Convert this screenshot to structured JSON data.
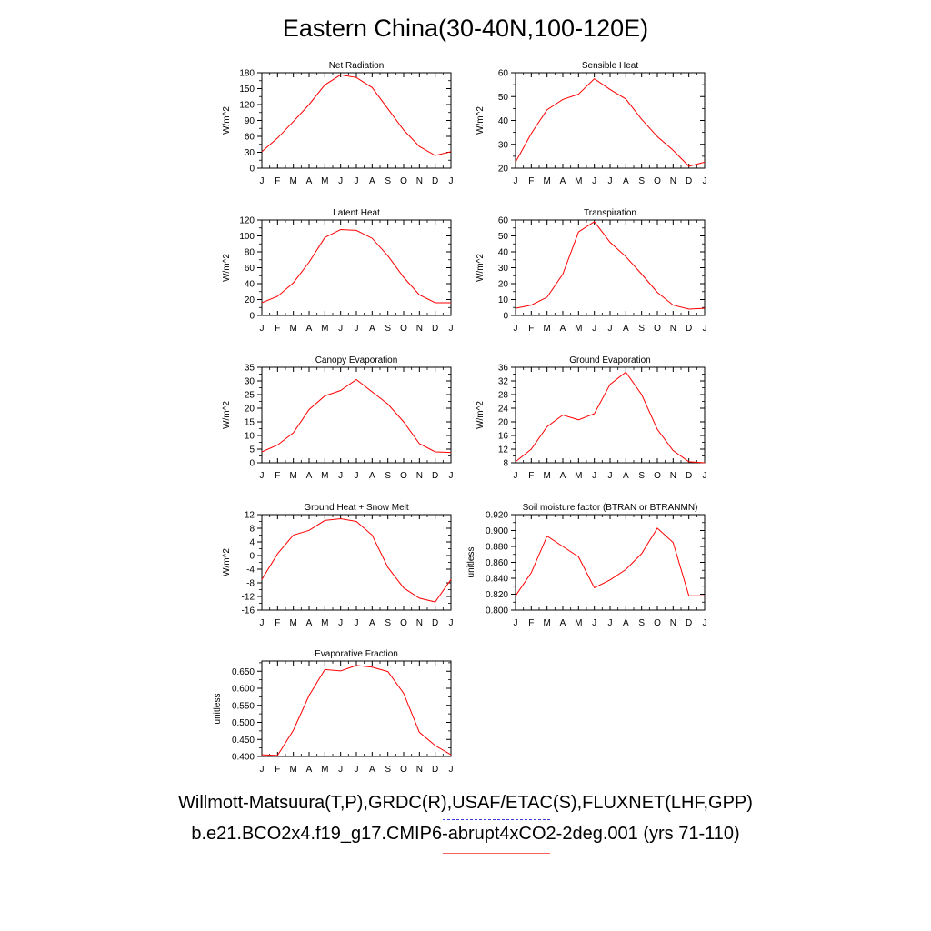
{
  "page": {
    "title": "Eastern China(30-40N,100-120E)"
  },
  "legend": {
    "observations_label": "Willmott-Matsuura(T,P),GRDC(R),USAF/ETAC(S),FLUXNET(LHF,GPP)",
    "model_label": "b.e21.BCO2x4.f19_g17.CMIP6-abrupt4xCO2-2deg.001 (yrs 71-110)",
    "observations_line_color": "#3b3bd9",
    "model_line_color": "#ff6060"
  },
  "chart_data": [
    {
      "type": "line",
      "title": "Net Radiation",
      "ylabel": "W/m^2",
      "categories": [
        "J",
        "F",
        "M",
        "A",
        "M",
        "J",
        "J",
        "A",
        "S",
        "O",
        "N",
        "D",
        "J"
      ],
      "ylim": [
        0,
        180
      ],
      "yticks": [
        "0",
        "30",
        "60",
        "90",
        "120",
        "150",
        "180"
      ],
      "values": [
        31,
        57,
        88,
        120,
        157,
        176,
        171,
        152,
        112,
        72,
        41,
        24,
        31
      ],
      "line_color": "#ff0000",
      "grid": false
    },
    {
      "type": "line",
      "title": "Sensible Heat",
      "ylabel": "W/m^2",
      "categories": [
        "J",
        "F",
        "M",
        "A",
        "M",
        "J",
        "J",
        "A",
        "S",
        "O",
        "N",
        "D",
        "J"
      ],
      "ylim": [
        20,
        60
      ],
      "yticks": [
        "20",
        "30",
        "40",
        "50",
        "60"
      ],
      "values": [
        22.5,
        34.5,
        44.5,
        48.8,
        51,
        57.5,
        53,
        49,
        40.5,
        33.2,
        27.5,
        20.8,
        22.5
      ],
      "line_color": "#ff0000",
      "grid": false
    },
    {
      "type": "line",
      "title": "Latent Heat",
      "ylabel": "W/m^2",
      "categories": [
        "J",
        "F",
        "M",
        "A",
        "M",
        "J",
        "J",
        "A",
        "S",
        "O",
        "N",
        "D",
        "J"
      ],
      "ylim": [
        0,
        120
      ],
      "yticks": [
        "0",
        "20",
        "40",
        "60",
        "80",
        "100",
        "120"
      ],
      "values": [
        16,
        24,
        41,
        67,
        98,
        108,
        107,
        97,
        75,
        48,
        26,
        16,
        16
      ],
      "line_color": "#ff0000",
      "grid": false
    },
    {
      "type": "line",
      "title": "Transpiration",
      "ylabel": "W/m^2",
      "categories": [
        "J",
        "F",
        "M",
        "A",
        "M",
        "J",
        "J",
        "A",
        "S",
        "O",
        "N",
        "D",
        "J"
      ],
      "ylim": [
        0,
        60
      ],
      "yticks": [
        "0",
        "10",
        "20",
        "30",
        "40",
        "50",
        "60"
      ],
      "values": [
        4.5,
        6.5,
        11.5,
        26,
        52.5,
        59,
        46,
        37,
        26,
        14.5,
        6.5,
        4,
        4.5
      ],
      "line_color": "#ff0000",
      "grid": false
    },
    {
      "type": "line",
      "title": "Canopy Evaporation",
      "ylabel": "W/m^2",
      "categories": [
        "J",
        "F",
        "M",
        "A",
        "M",
        "J",
        "J",
        "A",
        "S",
        "O",
        "N",
        "D",
        "J"
      ],
      "ylim": [
        0,
        35
      ],
      "yticks": [
        "0",
        "5",
        "10",
        "15",
        "20",
        "25",
        "30",
        "35"
      ],
      "values": [
        4,
        6.5,
        11,
        19.5,
        24.5,
        26.5,
        30.5,
        26,
        21.5,
        15,
        7,
        4,
        3.8
      ],
      "line_color": "#ff0000",
      "grid": false
    },
    {
      "type": "line",
      "title": "Ground Evaporation",
      "ylabel": "W/m^2",
      "categories": [
        "J",
        "F",
        "M",
        "A",
        "M",
        "J",
        "J",
        "A",
        "S",
        "O",
        "N",
        "D",
        "J"
      ],
      "ylim": [
        8,
        36
      ],
      "yticks": [
        "8",
        "12",
        "16",
        "20",
        "24",
        "28",
        "32",
        "36"
      ],
      "values": [
        8.3,
        12,
        18.6,
        22,
        20.6,
        22.4,
        31,
        34.6,
        28,
        17.8,
        11.6,
        8.3,
        8
      ],
      "line_color": "#ff0000",
      "grid": false
    },
    {
      "type": "line",
      "title": "Ground Heat + Snow Melt",
      "ylabel": "W/m^2",
      "categories": [
        "J",
        "F",
        "M",
        "A",
        "M",
        "J",
        "J",
        "A",
        "S",
        "O",
        "N",
        "D",
        "J"
      ],
      "ylim": [
        -16,
        12
      ],
      "yticks": [
        "-16",
        "-12",
        "-8",
        "-4",
        "0",
        "4",
        "8",
        "12"
      ],
      "values": [
        -7,
        0.5,
        6,
        7.4,
        10.3,
        10.8,
        10,
        6,
        -3.5,
        -9.5,
        -12.5,
        -13.6,
        -7
      ],
      "line_color": "#ff0000",
      "grid": false
    },
    {
      "type": "line",
      "title": "Soil moisture factor (BTRAN or BTRANMN)",
      "ylabel": "unitless",
      "categories": [
        "J",
        "F",
        "M",
        "A",
        "M",
        "J",
        "J",
        "A",
        "S",
        "O",
        "N",
        "D",
        "J"
      ],
      "ylim": [
        0.8,
        0.92
      ],
      "yticks": [
        "0.800",
        "0.820",
        "0.840",
        "0.860",
        "0.880",
        "0.900",
        "0.920"
      ],
      "values": [
        0.818,
        0.847,
        0.893,
        0.88,
        0.867,
        0.828,
        0.838,
        0.851,
        0.871,
        0.903,
        0.885,
        0.818,
        0.818
      ],
      "line_color": "#ff0000",
      "grid": false
    },
    {
      "type": "line",
      "title": "Evaporative Fraction",
      "ylabel": "unitless",
      "categories": [
        "J",
        "F",
        "M",
        "A",
        "M",
        "J",
        "J",
        "A",
        "S",
        "O",
        "N",
        "D",
        "J"
      ],
      "ylim": [
        0.4,
        0.68
      ],
      "yticks": [
        "0.400",
        "0.450",
        "0.500",
        "0.550",
        "0.600",
        "0.650"
      ],
      "values": [
        0.405,
        0.403,
        0.477,
        0.579,
        0.655,
        0.651,
        0.667,
        0.662,
        0.649,
        0.585,
        0.471,
        0.432,
        0.405
      ],
      "line_color": "#ff0000",
      "grid": false
    }
  ]
}
